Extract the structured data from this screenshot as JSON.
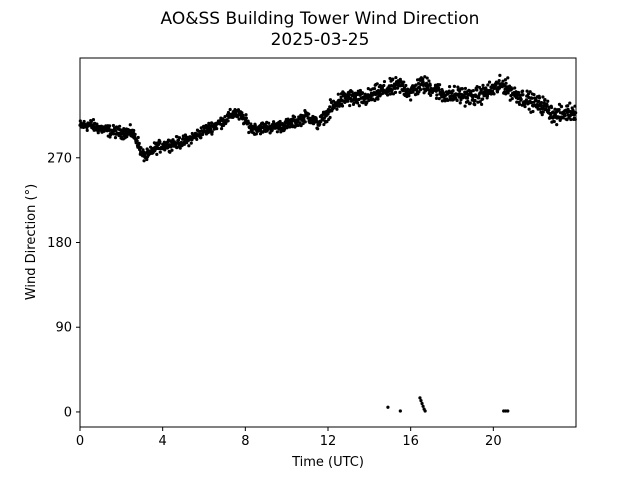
{
  "chart_data": {
    "type": "scatter",
    "title": "AO&SS Building Tower Wind Direction",
    "subtitle": "2025-03-25",
    "xlabel": "Time (UTC)",
    "ylabel": "Wind Direction (°)",
    "xlim": [
      0,
      24
    ],
    "ylim": [
      -16,
      376
    ],
    "xticks": [
      0,
      4,
      8,
      12,
      16,
      20
    ],
    "yticks": [
      0,
      90,
      180,
      270
    ],
    "grid": false,
    "marker_color": "#000000",
    "trend": [
      [
        0.0,
        304
      ],
      [
        0.5,
        305
      ],
      [
        1.0,
        301
      ],
      [
        1.5,
        298
      ],
      [
        2.0,
        297
      ],
      [
        2.5,
        297
      ],
      [
        2.8,
        287
      ],
      [
        3.0,
        273
      ],
      [
        3.3,
        272
      ],
      [
        3.6,
        280
      ],
      [
        4.0,
        283
      ],
      [
        4.5,
        285
      ],
      [
        5.0,
        287
      ],
      [
        5.5,
        292
      ],
      [
        6.0,
        299
      ],
      [
        6.5,
        304
      ],
      [
        7.0,
        310
      ],
      [
        7.5,
        318
      ],
      [
        7.9,
        312
      ],
      [
        8.3,
        301
      ],
      [
        8.8,
        302
      ],
      [
        9.5,
        303
      ],
      [
        10.0,
        305
      ],
      [
        10.5,
        309
      ],
      [
        11.0,
        315
      ],
      [
        11.5,
        306
      ],
      [
        12.0,
        317
      ],
      [
        12.5,
        330
      ],
      [
        13.0,
        334
      ],
      [
        13.5,
        332
      ],
      [
        14.0,
        334
      ],
      [
        14.5,
        340
      ],
      [
        15.0,
        343
      ],
      [
        15.5,
        347
      ],
      [
        16.0,
        339
      ],
      [
        16.5,
        348
      ],
      [
        17.0,
        345
      ],
      [
        17.5,
        338
      ],
      [
        18.0,
        336
      ],
      [
        18.5,
        337
      ],
      [
        19.0,
        334
      ],
      [
        19.5,
        338
      ],
      [
        20.0,
        343
      ],
      [
        20.5,
        348
      ],
      [
        21.0,
        338
      ],
      [
        21.5,
        333
      ],
      [
        22.0,
        328
      ],
      [
        22.5,
        325
      ],
      [
        23.0,
        314
      ],
      [
        23.5,
        318
      ],
      [
        24.0,
        320
      ]
    ],
    "outliers": [
      [
        14.9,
        5
      ],
      [
        15.5,
        1
      ],
      [
        16.45,
        15
      ],
      [
        16.5,
        12
      ],
      [
        16.55,
        9
      ],
      [
        16.6,
        6
      ],
      [
        16.65,
        3
      ],
      [
        16.7,
        1
      ],
      [
        20.5,
        1
      ],
      [
        20.6,
        1
      ],
      [
        20.7,
        1
      ]
    ]
  }
}
